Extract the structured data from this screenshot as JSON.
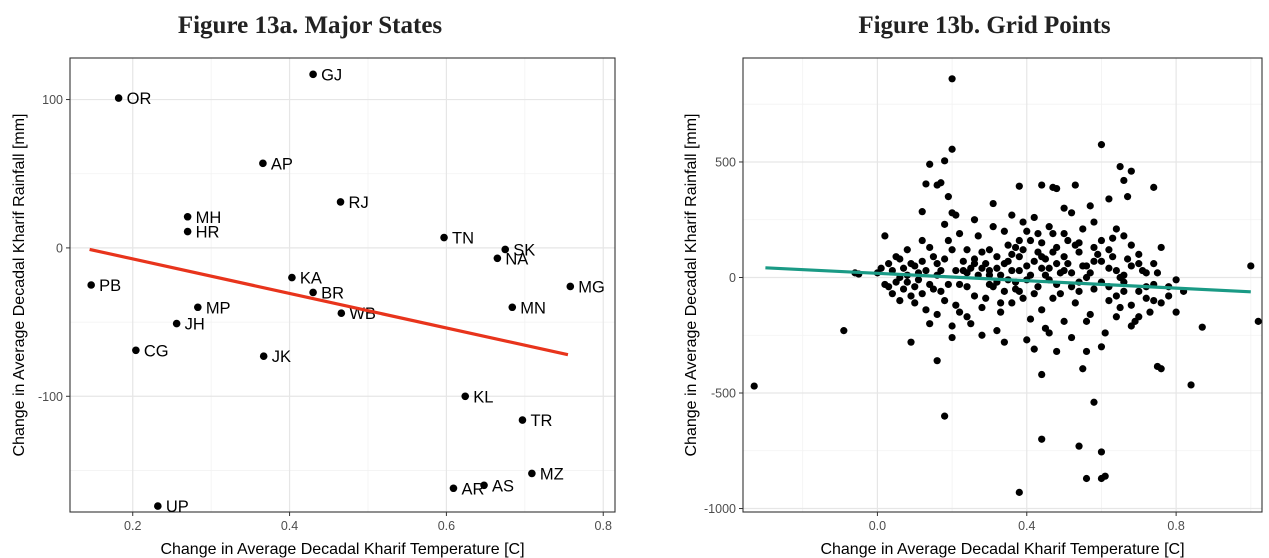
{
  "chart_data": [
    {
      "type": "scatter",
      "title": "Figure 13a. Major States",
      "xlabel": "Change in Average Decadal Kharif Temperature [C]",
      "ylabel": "Change in Average Decadal Kharif Rainfall [mm]",
      "xlim": [
        0.12,
        0.815
      ],
      "ylim": [
        -178,
        128
      ],
      "xticks": [
        0.2,
        0.4,
        0.6,
        0.8
      ],
      "xtick_labels": [
        "0.2",
        "0.4",
        "0.6",
        "0.8"
      ],
      "yticks": [
        -100,
        0,
        100
      ],
      "ytick_labels": [
        "-100",
        "0",
        "100"
      ],
      "grid": true,
      "point_color": "#000000",
      "fit_line": {
        "x": [
          0.145,
          0.755
        ],
        "y": [
          -1,
          -72
        ],
        "color": "#e8341c"
      },
      "points": [
        {
          "label": "GJ",
          "x": 0.43,
          "y": 117
        },
        {
          "label": "OR",
          "x": 0.182,
          "y": 101
        },
        {
          "label": "AP",
          "x": 0.366,
          "y": 57
        },
        {
          "label": "RJ",
          "x": 0.465,
          "y": 31
        },
        {
          "label": "MH",
          "x": 0.27,
          "y": 21
        },
        {
          "label": "HR",
          "x": 0.27,
          "y": 11
        },
        {
          "label": "TN",
          "x": 0.597,
          "y": 7
        },
        {
          "label": "SK",
          "x": 0.675,
          "y": -1
        },
        {
          "label": "NA",
          "x": 0.665,
          "y": -7
        },
        {
          "label": "KA",
          "x": 0.403,
          "y": -20
        },
        {
          "label": "PB",
          "x": 0.147,
          "y": -25
        },
        {
          "label": "MG",
          "x": 0.758,
          "y": -26
        },
        {
          "label": "BR",
          "x": 0.43,
          "y": -30
        },
        {
          "label": "MP",
          "x": 0.283,
          "y": -40
        },
        {
          "label": "MN",
          "x": 0.684,
          "y": -40
        },
        {
          "label": "WB",
          "x": 0.466,
          "y": -44
        },
        {
          "label": "JH",
          "x": 0.256,
          "y": -51
        },
        {
          "label": "CG",
          "x": 0.204,
          "y": -69
        },
        {
          "label": "JK",
          "x": 0.367,
          "y": -73
        },
        {
          "label": "KL",
          "x": 0.624,
          "y": -100
        },
        {
          "label": "TR",
          "x": 0.697,
          "y": -116
        },
        {
          "label": "MZ",
          "x": 0.709,
          "y": -152
        },
        {
          "label": "AS",
          "x": 0.648,
          "y": -160
        },
        {
          "label": "AR",
          "x": 0.609,
          "y": -162
        },
        {
          "label": "UP",
          "x": 0.232,
          "y": -174
        }
      ]
    },
    {
      "type": "scatter",
      "title": "Figure 13b. Grid Points",
      "xlabel": "Change in Average Decadal Kharif Temperature [C]",
      "ylabel": "Change in Average Decadal Kharif Rainfall [mm]",
      "xlim": [
        -0.36,
        1.03
      ],
      "ylim": [
        -1015,
        950
      ],
      "xticks": [
        0.0,
        0.4,
        0.8
      ],
      "xtick_labels": [
        "0.0",
        "0.4",
        "0.8"
      ],
      "yticks": [
        -1000,
        -500,
        0,
        500
      ],
      "ytick_labels": [
        "-1000",
        "-500",
        "0",
        "500"
      ],
      "grid": true,
      "point_color": "#000000",
      "fit_line": {
        "x": [
          -0.3,
          1.0
        ],
        "y": [
          42,
          -62
        ],
        "color": "#1a9a85"
      },
      "points": [
        [
          -0.33,
          -470
        ],
        [
          -0.09,
          -230
        ],
        [
          -0.06,
          20
        ],
        [
          -0.05,
          15
        ],
        [
          0.02,
          180
        ],
        [
          0.2,
          860
        ],
        [
          0.2,
          555
        ],
        [
          0.18,
          505
        ],
        [
          0.14,
          490
        ],
        [
          0.12,
          285
        ],
        [
          0.13,
          405
        ],
        [
          0.16,
          400
        ],
        [
          0.17,
          410
        ],
        [
          0.19,
          350
        ],
        [
          0.21,
          270
        ],
        [
          0.2,
          280
        ],
        [
          0.6,
          575
        ],
        [
          0.65,
          480
        ],
        [
          0.68,
          460
        ],
        [
          0.67,
          350
        ],
        [
          0.74,
          390
        ],
        [
          0.44,
          400
        ],
        [
          0.48,
          385
        ],
        [
          0.47,
          390
        ],
        [
          0.5,
          300
        ],
        [
          0.53,
          400
        ],
        [
          0.38,
          395
        ],
        [
          0.31,
          320
        ],
        [
          0.57,
          310
        ],
        [
          0.62,
          340
        ],
        [
          0.66,
          420
        ],
        [
          1.0,
          50
        ],
        [
          1.02,
          -190
        ],
        [
          0.87,
          -215
        ],
        [
          0.84,
          -465
        ],
        [
          0.75,
          -385
        ],
        [
          0.76,
          -395
        ],
        [
          0.18,
          -600
        ],
        [
          0.44,
          -420
        ],
        [
          0.44,
          -700
        ],
        [
          0.54,
          -730
        ],
        [
          0.56,
          -870
        ],
        [
          0.6,
          -870
        ],
        [
          0.61,
          -860
        ],
        [
          0.6,
          -755
        ],
        [
          0.58,
          -540
        ],
        [
          0.55,
          -395
        ],
        [
          0.38,
          -930
        ],
        [
          0.2,
          -260
        ],
        [
          0.16,
          -360
        ],
        [
          0.09,
          -280
        ],
        [
          0.24,
          120
        ],
        [
          0.26,
          80
        ],
        [
          0.28,
          40
        ],
        [
          0.3,
          10
        ],
        [
          0.32,
          -20
        ],
        [
          0.34,
          60
        ],
        [
          0.36,
          100
        ],
        [
          0.38,
          30
        ],
        [
          0.4,
          -10
        ],
        [
          0.42,
          70
        ],
        [
          0.44,
          150
        ],
        [
          0.46,
          40
        ],
        [
          0.48,
          -30
        ],
        [
          0.5,
          90
        ],
        [
          0.52,
          20
        ],
        [
          0.54,
          -60
        ],
        [
          0.56,
          50
        ],
        [
          0.58,
          130
        ],
        [
          0.6,
          -20
        ],
        [
          0.62,
          40
        ],
        [
          0.64,
          -80
        ],
        [
          0.66,
          10
        ],
        [
          0.68,
          -120
        ],
        [
          0.7,
          60
        ],
        [
          0.72,
          -40
        ],
        [
          0.74,
          -100
        ],
        [
          0.76,
          130
        ],
        [
          0.78,
          -80
        ],
        [
          0.8,
          -150
        ],
        [
          0.82,
          -60
        ],
        [
          0.05,
          -20
        ],
        [
          0.07,
          40
        ],
        [
          0.09,
          -80
        ],
        [
          0.11,
          20
        ],
        [
          0.13,
          -140
        ],
        [
          0.15,
          90
        ],
        [
          0.17,
          -60
        ],
        [
          0.19,
          160
        ],
        [
          0.21,
          -120
        ],
        [
          0.23,
          30
        ],
        [
          0.25,
          -200
        ],
        [
          0.27,
          180
        ],
        [
          0.29,
          -90
        ],
        [
          0.31,
          220
        ],
        [
          0.33,
          -150
        ],
        [
          0.35,
          140
        ],
        [
          0.37,
          -50
        ],
        [
          0.39,
          240
        ],
        [
          0.41,
          -180
        ],
        [
          0.43,
          110
        ],
        [
          0.45,
          -220
        ],
        [
          0.47,
          190
        ],
        [
          0.49,
          -70
        ],
        [
          0.51,
          160
        ],
        [
          0.53,
          -110
        ],
        [
          0.55,
          210
        ],
        [
          0.57,
          -160
        ],
        [
          0.59,
          100
        ],
        [
          0.61,
          -240
        ],
        [
          0.63,
          170
        ],
        [
          0.65,
          -130
        ],
        [
          0.67,
          80
        ],
        [
          0.69,
          -190
        ],
        [
          0.71,
          30
        ],
        [
          0.73,
          -150
        ],
        [
          0.03,
          60
        ],
        [
          0.06,
          -100
        ],
        [
          0.08,
          120
        ],
        [
          0.1,
          -40
        ],
        [
          0.12,
          70
        ],
        [
          0.14,
          -200
        ],
        [
          0.16,
          10
        ],
        [
          0.18,
          230
        ],
        [
          0.22,
          -30
        ],
        [
          0.24,
          -170
        ],
        [
          0.26,
          250
        ],
        [
          0.28,
          -130
        ],
        [
          0.3,
          120
        ],
        [
          0.32,
          -230
        ],
        [
          0.34,
          200
        ],
        [
          0.36,
          -110
        ],
        [
          0.38,
          160
        ],
        [
          0.4,
          -270
        ],
        [
          0.42,
          260
        ],
        [
          0.44,
          -140
        ],
        [
          0.46,
          220
        ],
        [
          0.48,
          -320
        ],
        [
          0.5,
          190
        ],
        [
          0.52,
          -260
        ],
        [
          0.54,
          150
        ],
        [
          0.56,
          -190
        ],
        [
          0.58,
          240
        ],
        [
          0.6,
          -300
        ],
        [
          0.62,
          120
        ],
        [
          0.64,
          -170
        ],
        [
          0.66,
          180
        ],
        [
          0.68,
          -210
        ],
        [
          0.7,
          100
        ],
        [
          0.72,
          -90
        ],
        [
          0.74,
          60
        ],
        [
          0.76,
          -110
        ],
        [
          0.04,
          30
        ],
        [
          0.06,
          0
        ],
        [
          0.08,
          -20
        ],
        [
          0.1,
          50
        ],
        [
          0.12,
          -70
        ],
        [
          0.14,
          130
        ],
        [
          0.16,
          -160
        ],
        [
          0.18,
          80
        ],
        [
          0.2,
          -210
        ],
        [
          0.22,
          190
        ],
        [
          0.24,
          -40
        ],
        [
          0.26,
          60
        ],
        [
          0.28,
          -250
        ],
        [
          0.3,
          30
        ],
        [
          0.32,
          90
        ],
        [
          0.34,
          -280
        ],
        [
          0.36,
          270
        ],
        [
          0.38,
          -60
        ],
        [
          0.4,
          200
        ],
        [
          0.42,
          -310
        ],
        [
          0.44,
          40
        ],
        [
          0.46,
          -240
        ],
        [
          0.48,
          130
        ],
        [
          0.5,
          -190
        ],
        [
          0.52,
          280
        ],
        [
          0.54,
          -20
        ],
        [
          0.56,
          -320
        ],
        [
          0.58,
          70
        ],
        [
          0.6,
          160
        ],
        [
          0.62,
          -100
        ],
        [
          0.64,
          210
        ],
        [
          0.66,
          -60
        ],
        [
          0.68,
          140
        ],
        [
          0.7,
          -170
        ],
        [
          0.0,
          20
        ],
        [
          0.02,
          -30
        ],
        [
          0.04,
          -70
        ],
        [
          0.06,
          80
        ],
        [
          0.08,
          10
        ],
        [
          0.1,
          -110
        ],
        [
          0.12,
          160
        ],
        [
          0.14,
          -30
        ],
        [
          0.16,
          60
        ],
        [
          0.18,
          -100
        ],
        [
          0.2,
          120
        ],
        [
          0.22,
          -150
        ],
        [
          0.24,
          20
        ],
        [
          0.26,
          -80
        ],
        [
          0.28,
          110
        ],
        [
          0.3,
          -30
        ],
        [
          0.32,
          40
        ],
        [
          0.34,
          -60
        ],
        [
          0.36,
          30
        ],
        [
          0.38,
          90
        ],
        [
          0.4,
          50
        ],
        [
          0.42,
          -70
        ],
        [
          0.44,
          90
        ],
        [
          0.46,
          -10
        ],
        [
          0.48,
          60
        ],
        [
          0.5,
          30
        ],
        [
          0.52,
          -40
        ],
        [
          0.54,
          110
        ],
        [
          0.56,
          0
        ],
        [
          0.58,
          -50
        ],
        [
          0.6,
          70
        ],
        [
          0.62,
          -40
        ],
        [
          0.64,
          30
        ],
        [
          0.66,
          -20
        ],
        [
          0.68,
          50
        ],
        [
          0.7,
          -60
        ],
        [
          0.72,
          20
        ],
        [
          0.74,
          -30
        ],
        [
          0.78,
          -40
        ],
        [
          0.8,
          -10
        ],
        [
          0.33,
          10
        ],
        [
          0.35,
          70
        ],
        [
          0.37,
          -20
        ],
        [
          0.39,
          120
        ],
        [
          0.41,
          10
        ],
        [
          0.43,
          -40
        ],
        [
          0.45,
          80
        ],
        [
          0.47,
          -90
        ],
        [
          0.49,
          20
        ],
        [
          0.51,
          60
        ],
        [
          0.27,
          10
        ],
        [
          0.29,
          60
        ],
        [
          0.31,
          -40
        ],
        [
          0.23,
          70
        ],
        [
          0.21,
          30
        ],
        [
          0.19,
          -30
        ],
        [
          0.17,
          30
        ],
        [
          0.15,
          -50
        ],
        [
          0.13,
          30
        ],
        [
          0.11,
          -10
        ],
        [
          0.09,
          60
        ],
        [
          0.07,
          -50
        ],
        [
          0.05,
          90
        ],
        [
          0.03,
          -40
        ],
        [
          0.01,
          40
        ],
        [
          0.25,
          40
        ],
        [
          0.35,
          -10
        ],
        [
          0.45,
          10
        ],
        [
          0.55,
          50
        ],
        [
          0.65,
          0
        ],
        [
          0.75,
          20
        ],
        [
          0.41,
          160
        ],
        [
          0.43,
          190
        ],
        [
          0.37,
          130
        ],
        [
          0.57,
          20
        ],
        [
          0.63,
          90
        ],
        [
          0.53,
          140
        ],
        [
          0.47,
          110
        ],
        [
          0.39,
          -90
        ],
        [
          0.33,
          -110
        ]
      ]
    }
  ]
}
